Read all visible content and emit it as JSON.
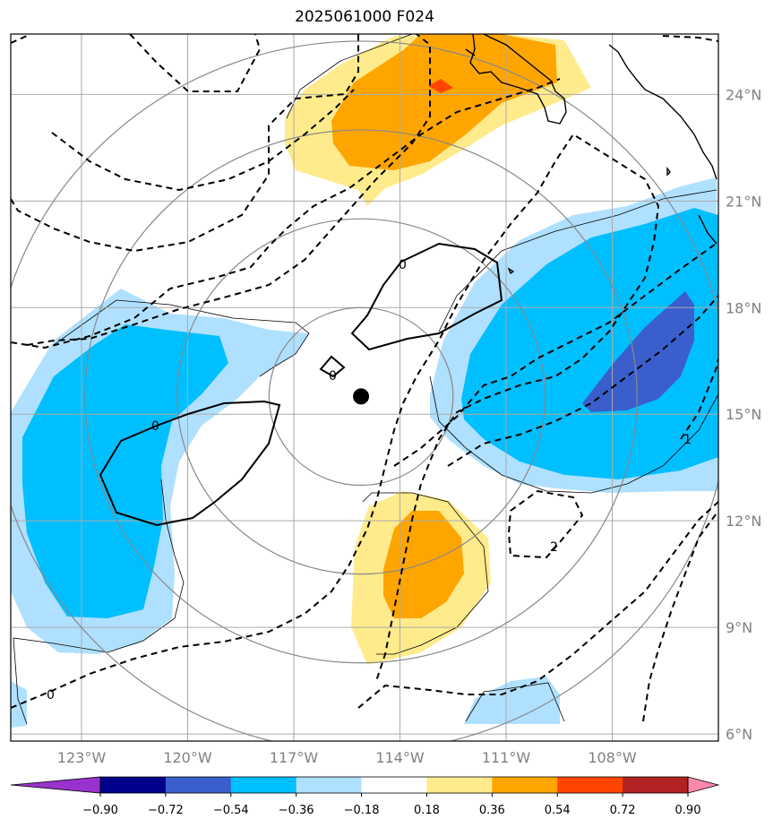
{
  "chart_data": {
    "type": "heatmap",
    "title": "2025061000 F024",
    "map": {
      "lon_range": [
        -125,
        -105
      ],
      "lat_range": [
        5.8,
        25.7
      ],
      "lon_ticks": [
        -123,
        -120,
        -117,
        -114,
        -111,
        -108
      ],
      "lon_tick_labels": [
        "123°W",
        "120°W",
        "117°W",
        "114°W",
        "111°W",
        "108°W"
      ],
      "lat_ticks": [
        6,
        9,
        12,
        15,
        18,
        21,
        24
      ],
      "lat_tick_labels": [
        "6°N",
        "9°N",
        "12°N",
        "15°N",
        "18°N",
        "21°N",
        "24°N"
      ],
      "grid": true,
      "storm_center": {
        "lon": -115.1,
        "lat": 15.5
      },
      "range_rings_deg": [
        2.5,
        5,
        7.5,
        10
      ]
    },
    "colorbar": {
      "ticks": [
        "−0.90",
        "−0.72",
        "−0.54",
        "−0.36",
        "−0.18",
        "0.18",
        "0.36",
        "0.54",
        "0.72",
        "0.90"
      ],
      "colors": [
        "#9932cc",
        "#00008b",
        "#3a5fcd",
        "#00bfff",
        "#b0e0ff",
        "#ffffff",
        "#ffeb8c",
        "#ffa500",
        "#ff4500",
        "#b22222",
        "#ff88aa"
      ],
      "extend": "both"
    },
    "contour_labels": [
      "0",
      "0",
      "0",
      "0",
      "2",
      "1"
    ],
    "colors": {
      "grid": "#aaaaaa",
      "ring": "#888888",
      "coast": "#000000"
    }
  }
}
